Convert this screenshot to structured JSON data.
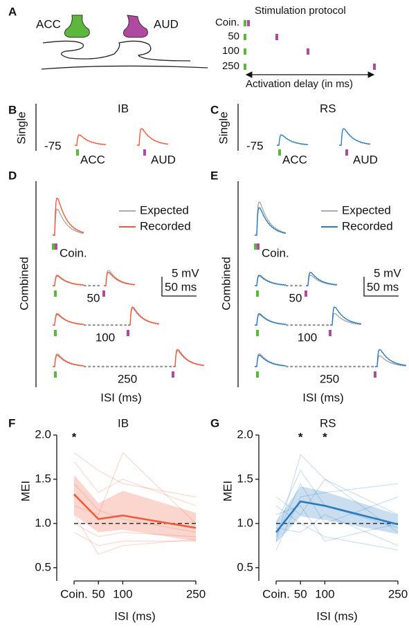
{
  "panel_a": {
    "letter": "A",
    "synapse_labels": [
      "ACC",
      "AUD"
    ],
    "protocol": {
      "title": "Stimulation protocol",
      "rows": [
        "Coin.",
        "50",
        "100",
        "250"
      ],
      "axis_label": "Activation delay (in ms)"
    }
  },
  "panel_b": {
    "letter": "B",
    "title": "IB",
    "color": "#f15a3a",
    "row_label": "Single",
    "baseline": "-75",
    "stim_labels": [
      "ACC",
      "AUD"
    ]
  },
  "panel_c": {
    "letter": "C",
    "title": "RS",
    "color": "#2b7bbf",
    "row_label": "Single",
    "baseline": "-75",
    "stim_labels": [
      "ACC",
      "AUD"
    ]
  },
  "panel_d": {
    "letter": "D",
    "row_label": "Combined",
    "legend": [
      {
        "name": "Expected",
        "color": "#aaaaaa"
      },
      {
        "name": "Recorded",
        "color": "#f15a3a"
      }
    ],
    "coin_label": "Coin.",
    "delay_labels": [
      "50",
      "100",
      "250"
    ],
    "scale_bar": {
      "amplitude": "5 mV",
      "time": "50 ms"
    },
    "x_label": "ISI (ms)"
  },
  "panel_e": {
    "letter": "E",
    "row_label": "Combined",
    "legend": [
      {
        "name": "Expected",
        "color": "#aaaaaa"
      },
      {
        "name": "Recorded",
        "color": "#2b7bbf"
      }
    ],
    "coin_label": "Coin.",
    "delay_labels": [
      "50",
      "100",
      "250"
    ],
    "scale_bar": {
      "amplitude": "5 mV",
      "time": "50 ms"
    },
    "x_label": "ISI (ms)"
  },
  "chart_data": [
    {
      "type": "line",
      "letter": "F",
      "title": "IB",
      "color": "#f15a3a",
      "x_label": "ISI (ms)",
      "y_label": "MEI",
      "x": [
        0,
        50,
        100,
        250
      ],
      "mean": [
        1.33,
        1.05,
        1.09,
        0.95
      ],
      "band_lower": [
        1.1,
        0.9,
        0.93,
        0.8
      ],
      "band_upper": [
        1.55,
        1.23,
        1.37,
        1.12
      ],
      "cells": [
        [
          1.8,
          1.6,
          1.45,
          1.3
        ],
        [
          1.7,
          1.35,
          1.5,
          1.2
        ],
        [
          1.2,
          1.1,
          1.8,
          1.0
        ],
        [
          1.1,
          0.65,
          0.75,
          0.82
        ],
        [
          1.0,
          0.85,
          0.9,
          0.85
        ],
        [
          1.45,
          1.15,
          1.05,
          0.9
        ],
        [
          0.9,
          0.75,
          0.8,
          0.8
        ]
      ],
      "ref_line": 1,
      "annotations": [
        {
          "text": "*",
          "x": 0
        }
      ],
      "xlim": [
        0,
        250
      ],
      "ylim": [
        0.35,
        2.0
      ],
      "xticks": [
        {
          "value": 0,
          "label": "Coin."
        },
        50,
        100,
        250
      ],
      "yticks": [
        0.5,
        {
          "value": 1,
          "label": "1.0"
        },
        1.5,
        {
          "value": 2,
          "label": "2.0"
        }
      ]
    },
    {
      "type": "line",
      "letter": "G",
      "title": "RS",
      "color": "#2b7bbf",
      "x_label": "ISI (ms)",
      "y_label": "MEI",
      "x": [
        0,
        50,
        100,
        250
      ],
      "mean": [
        0.9,
        1.25,
        1.2,
        0.99
      ],
      "band_lower": [
        0.78,
        1.08,
        1.04,
        0.88
      ],
      "band_upper": [
        1.02,
        1.42,
        1.36,
        1.1
      ],
      "cells": [
        [
          0.8,
          1.78,
          1.5,
          1.1
        ],
        [
          1.0,
          1.6,
          1.2,
          0.95
        ],
        [
          0.7,
          1.3,
          1.35,
          1.45
        ],
        [
          1.2,
          1.0,
          0.85,
          0.7
        ],
        [
          0.85,
          1.45,
          1.0,
          1.3
        ],
        [
          1.3,
          1.1,
          1.5,
          0.9
        ],
        [
          0.95,
          0.9,
          1.1,
          0.75
        ],
        [
          1.1,
          1.2,
          0.8,
          1.0
        ]
      ],
      "ref_line": 1,
      "annotations": [
        {
          "text": "*",
          "x": 50
        },
        {
          "text": "*",
          "x": 100
        }
      ],
      "xlim": [
        0,
        250
      ],
      "ylim": [
        0.35,
        2.0
      ],
      "xticks": [
        {
          "value": 0,
          "label": "Coin."
        },
        50,
        100,
        250
      ],
      "yticks": [
        0.5,
        {
          "value": 1,
          "label": "1.0"
        },
        1.5,
        {
          "value": 2,
          "label": "2.0"
        }
      ]
    }
  ]
}
